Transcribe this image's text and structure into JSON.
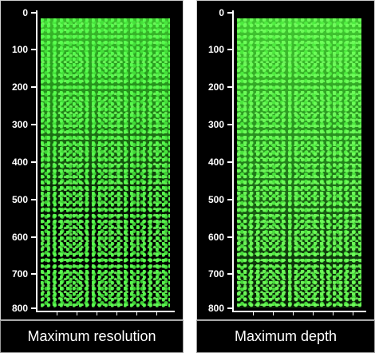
{
  "panels": [
    {
      "caption": "Maximum resolution",
      "y_ticks": [
        "0",
        "100",
        "200",
        "300",
        "400",
        "500",
        "600",
        "700",
        "800"
      ]
    },
    {
      "caption": "Maximum depth",
      "y_ticks": [
        "0",
        "100",
        "200",
        "300",
        "400",
        "500",
        "600",
        "700",
        "800"
      ]
    }
  ],
  "colors": {
    "signal": "#39d62f",
    "background": "#000000",
    "axis": "#ffffff"
  }
}
